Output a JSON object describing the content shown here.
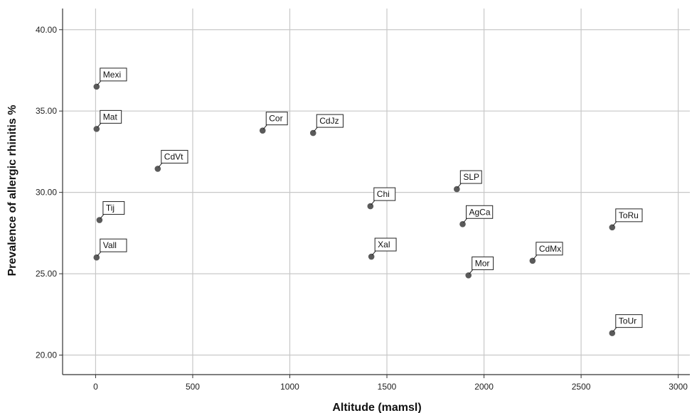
{
  "chart_data": {
    "type": "scatter",
    "title": "",
    "xlabel": "Altitude (mamsl)",
    "ylabel": "Prevalence of allergic rhinitis %",
    "xlim": [
      -170,
      3060
    ],
    "ylim": [
      18.8,
      41.3
    ],
    "x_ticks": [
      0,
      500,
      1000,
      1500,
      2000,
      2500,
      3000
    ],
    "x_tick_labels": [
      "0",
      "500",
      "1000",
      "1500",
      "2000",
      "2500",
      "3000"
    ],
    "y_ticks": [
      20,
      25,
      30,
      35,
      40
    ],
    "y_tick_labels": [
      "20.00",
      "25.00",
      "30.00",
      "35.00",
      "40.00"
    ],
    "grid": true,
    "marker_color": "#5a5a5a",
    "grid_color": "#c8c8c8",
    "points": [
      {
        "label": "Mexi",
        "x": 5,
        "y": 36.5
      },
      {
        "label": "Mat",
        "x": 5,
        "y": 33.9
      },
      {
        "label": "CdVt",
        "x": 320,
        "y": 31.45
      },
      {
        "label": "Tij",
        "x": 20,
        "y": 28.3
      },
      {
        "label": "Vall",
        "x": 5,
        "y": 26.0
      },
      {
        "label": "Cor",
        "x": 860,
        "y": 33.8
      },
      {
        "label": "CdJz",
        "x": 1120,
        "y": 33.65
      },
      {
        "label": "Chi",
        "x": 1415,
        "y": 29.15
      },
      {
        "label": "Xal",
        "x": 1420,
        "y": 26.05
      },
      {
        "label": "SLP",
        "x": 1860,
        "y": 30.2
      },
      {
        "label": "AgCa",
        "x": 1890,
        "y": 28.05
      },
      {
        "label": "Mor",
        "x": 1920,
        "y": 24.9
      },
      {
        "label": "CdMx",
        "x": 2250,
        "y": 25.8
      },
      {
        "label": "ToRu",
        "x": 2660,
        "y": 27.85
      },
      {
        "label": "ToUr",
        "x": 2660,
        "y": 21.35
      }
    ]
  }
}
